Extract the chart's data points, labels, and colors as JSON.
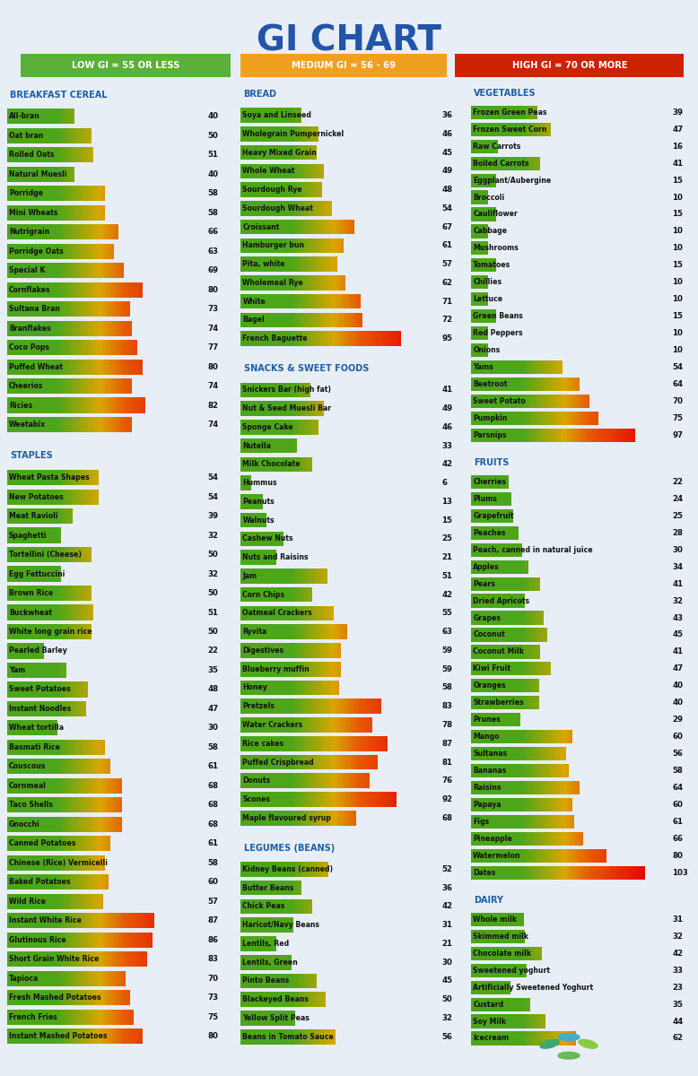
{
  "title": "GI CHART",
  "title_color": "#2255AA",
  "bg_color": "#e8eef5",
  "header_color": "#1a5fa8",
  "bar_max": 110,
  "legend": [
    {
      "label": "LOW GI = 55 OR LESS",
      "bg": "#5ab038"
    },
    {
      "label": "MEDIUM GI = 56 - 69",
      "bg": "#f0a020"
    },
    {
      "label": "HIGH GI = 70 OR MORE",
      "bg": "#cc2200"
    }
  ],
  "columns": [
    {
      "sections": [
        {
          "header": "BREAKFAST CEREAL",
          "items": [
            [
              "All-bran",
              40
            ],
            [
              "Oat bran",
              50
            ],
            [
              "Rolled Oats",
              51
            ],
            [
              "Natural Muesli",
              40
            ],
            [
              "Porridge",
              58
            ],
            [
              "Mini Wheats",
              58
            ],
            [
              "Nutrigrain",
              66
            ],
            [
              "Porridge Oats",
              63
            ],
            [
              "Special K",
              69
            ],
            [
              "Cornflakes",
              80
            ],
            [
              "Sultana Bran",
              73
            ],
            [
              "Branflakes",
              74
            ],
            [
              "Coco Pops",
              77
            ],
            [
              "Puffed Wheat",
              80
            ],
            [
              "Cheerios",
              74
            ],
            [
              "Ricies",
              82
            ],
            [
              "Weetabix",
              74
            ]
          ]
        },
        {
          "header": "STAPLES",
          "items": [
            [
              "Wheat Pasta Shapes",
              54
            ],
            [
              "New Potatoes",
              54
            ],
            [
              "Meat Ravioli",
              39
            ],
            [
              "Spaghetti",
              32
            ],
            [
              "Tortellini (Cheese)",
              50
            ],
            [
              "Egg Fettuccini",
              32
            ],
            [
              "Brown Rice",
              50
            ],
            [
              "Buckwheat",
              51
            ],
            [
              "White long grain rice",
              50
            ],
            [
              "Pearled Barley",
              22
            ],
            [
              "Yam",
              35
            ],
            [
              "Sweet Potatoes",
              48
            ],
            [
              "Instant Noodles",
              47
            ],
            [
              "Wheat tortilla",
              30
            ],
            [
              "Basmati Rice",
              58
            ],
            [
              "Couscous",
              61
            ],
            [
              "Cornmeal",
              68
            ],
            [
              "Taco Shells",
              68
            ],
            [
              "Gnocchi",
              68
            ],
            [
              "Canned Potatoes",
              61
            ],
            [
              "Chinese (Rice) Vermicelli",
              58
            ],
            [
              "Baked Potatoes",
              60
            ],
            [
              "Wild Rice",
              57
            ],
            [
              "Instant White Rice",
              87
            ],
            [
              "Glutinous Rice",
              86
            ],
            [
              "Short Grain White Rice",
              83
            ],
            [
              "Tapioca",
              70
            ],
            [
              "Fresh Mashed Potatoes",
              73
            ],
            [
              "French Fries",
              75
            ],
            [
              "Instant Mashed Potatoes",
              80
            ]
          ]
        }
      ]
    },
    {
      "sections": [
        {
          "header": "BREAD",
          "items": [
            [
              "Soya and Linseed",
              36
            ],
            [
              "Wholegrain Pumpernickel",
              46
            ],
            [
              "Heavy Mixed Grain",
              45
            ],
            [
              "Whole Wheat",
              49
            ],
            [
              "Sourdough Rye",
              48
            ],
            [
              "Sourdough Wheat",
              54
            ],
            [
              "Croissant",
              67
            ],
            [
              "Hamburger bun",
              61
            ],
            [
              "Pita, white",
              57
            ],
            [
              "Wholemeal Rye",
              62
            ],
            [
              "White",
              71
            ],
            [
              "Bagel",
              72
            ],
            [
              "French Baguette",
              95
            ]
          ]
        },
        {
          "header": "SNACKS & SWEET FOODS",
          "items": [
            [
              "Snickers Bar (high fat)",
              41
            ],
            [
              "Nut & Seed Muesli Bar",
              49
            ],
            [
              "Sponge Cake",
              46
            ],
            [
              "Nutella",
              33
            ],
            [
              "Milk Chocolate",
              42
            ],
            [
              "Hummus",
              6
            ],
            [
              "Peanuts",
              13
            ],
            [
              "Walnuts",
              15
            ],
            [
              "Cashew Nuts",
              25
            ],
            [
              "Nuts and Raisins",
              21
            ],
            [
              "Jam",
              51
            ],
            [
              "Corn Chips",
              42
            ],
            [
              "Oatmeal Crackers",
              55
            ],
            [
              "Ryvita",
              63
            ],
            [
              "Digestives",
              59
            ],
            [
              "Blueberry muffin",
              59
            ],
            [
              "Honey",
              58
            ],
            [
              "Pretzels",
              83
            ],
            [
              "Water Crackers",
              78
            ],
            [
              "Rice cakes",
              87
            ],
            [
              "Puffed Crispbread",
              81
            ],
            [
              "Donuts",
              76
            ],
            [
              "Scones",
              92
            ],
            [
              "Maple flavoured syrup",
              68
            ]
          ]
        },
        {
          "header": "LEGUMES (BEANS)",
          "items": [
            [
              "Kidney Beans (canned)",
              52
            ],
            [
              "Butter Beans",
              36
            ],
            [
              "Chick Peas",
              42
            ],
            [
              "Haricot/Navy Beans",
              31
            ],
            [
              "Lentils, Red",
              21
            ],
            [
              "Lentils, Green",
              30
            ],
            [
              "Pinto Beans",
              45
            ],
            [
              "Blackeyed Beans",
              50
            ],
            [
              "Yellow Split Peas",
              32
            ],
            [
              "Beans in Tomato Sauce",
              56
            ]
          ]
        }
      ]
    },
    {
      "sections": [
        {
          "header": "VEGETABLES",
          "items": [
            [
              "Frozen Green Peas",
              39
            ],
            [
              "Frozen Sweet Corn",
              47
            ],
            [
              "Raw Carrots",
              16
            ],
            [
              "Boiled Carrots",
              41
            ],
            [
              "Eggplant/Aubergine",
              15
            ],
            [
              "Broccoli",
              10
            ],
            [
              "Cauliflower",
              15
            ],
            [
              "Cabbage",
              10
            ],
            [
              "Mushrooms",
              10
            ],
            [
              "Tomatoes",
              15
            ],
            [
              "Chillies",
              10
            ],
            [
              "Lettuce",
              10
            ],
            [
              "Green Beans",
              15
            ],
            [
              "Red Peppers",
              10
            ],
            [
              "Onions",
              10
            ],
            [
              "Yams",
              54
            ],
            [
              "Beetroot",
              64
            ],
            [
              "Sweet Potato",
              70
            ],
            [
              "Pumpkin",
              75
            ],
            [
              "Parsnips",
              97
            ]
          ]
        },
        {
          "header": "FRUITS",
          "items": [
            [
              "Cherries",
              22
            ],
            [
              "Plums",
              24
            ],
            [
              "Grapefruit",
              25
            ],
            [
              "Peaches",
              28
            ],
            [
              "Peach, canned in natural juice",
              30
            ],
            [
              "Apples",
              34
            ],
            [
              "Pears",
              41
            ],
            [
              "Dried Apricots",
              32
            ],
            [
              "Grapes",
              43
            ],
            [
              "Coconut",
              45
            ],
            [
              "Coconut Milk",
              41
            ],
            [
              "Kiwi Fruit",
              47
            ],
            [
              "Oranges",
              40
            ],
            [
              "Strawberries",
              40
            ],
            [
              "Prunes",
              29
            ],
            [
              "Mango",
              60
            ],
            [
              "Sultanas",
              56
            ],
            [
              "Bananas",
              58
            ],
            [
              "Raisins",
              64
            ],
            [
              "Papaya",
              60
            ],
            [
              "Figs",
              61
            ],
            [
              "Pineapple",
              66
            ],
            [
              "Watermelon",
              80
            ],
            [
              "Dates",
              103
            ]
          ]
        },
        {
          "header": "DAIRY",
          "items": [
            [
              "Whole milk",
              31
            ],
            [
              "Skimmed milk",
              32
            ],
            [
              "Chocolate milk",
              42
            ],
            [
              "Sweetened yoghurt",
              33
            ],
            [
              "Artificially Sweetened Yoghurt",
              23
            ],
            [
              "Custard",
              35
            ],
            [
              "Soy Milk",
              44
            ],
            [
              "Icecream",
              62
            ]
          ]
        }
      ]
    }
  ]
}
